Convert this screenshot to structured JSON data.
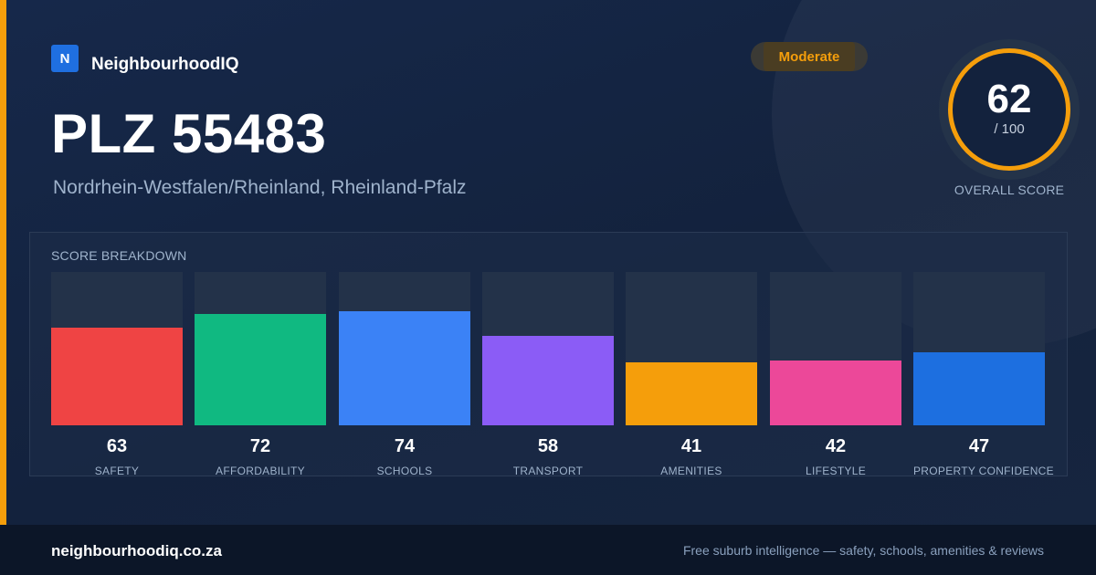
{
  "brand": {
    "logo_letter": "N",
    "name": "NeighbourhoodIQ"
  },
  "badge": {
    "label": "Moderate",
    "color": "#f59e0b"
  },
  "header": {
    "title": "PLZ 55483",
    "subtitle": "Nordrhein-Westfalen/Rheinland, Rheinland-Pfalz"
  },
  "overall": {
    "score": "62",
    "max": "/ 100",
    "caption": "OVERALL SCORE",
    "ring_color": "#f59e0b"
  },
  "breakdown": {
    "heading": "SCORE BREAKDOWN",
    "items": [
      {
        "value": 63,
        "label": "SAFETY",
        "color": "#ef4444"
      },
      {
        "value": 72,
        "label": "AFFORDABILITY",
        "color": "#10b981"
      },
      {
        "value": 74,
        "label": "SCHOOLS",
        "color": "#3b82f6"
      },
      {
        "value": 58,
        "label": "TRANSPORT",
        "color": "#8b5cf6"
      },
      {
        "value": 41,
        "label": "AMENITIES",
        "color": "#f59e0b"
      },
      {
        "value": 42,
        "label": "LIFESTYLE",
        "color": "#ec4899"
      },
      {
        "value": 47,
        "label": "PROPERTY CONFIDENCE",
        "color": "#1d6fe0"
      }
    ]
  },
  "footer": {
    "domain": "neighbourhoodiq.co.za",
    "tagline": "Free suburb intelligence — safety, schools, amenities & reviews"
  }
}
